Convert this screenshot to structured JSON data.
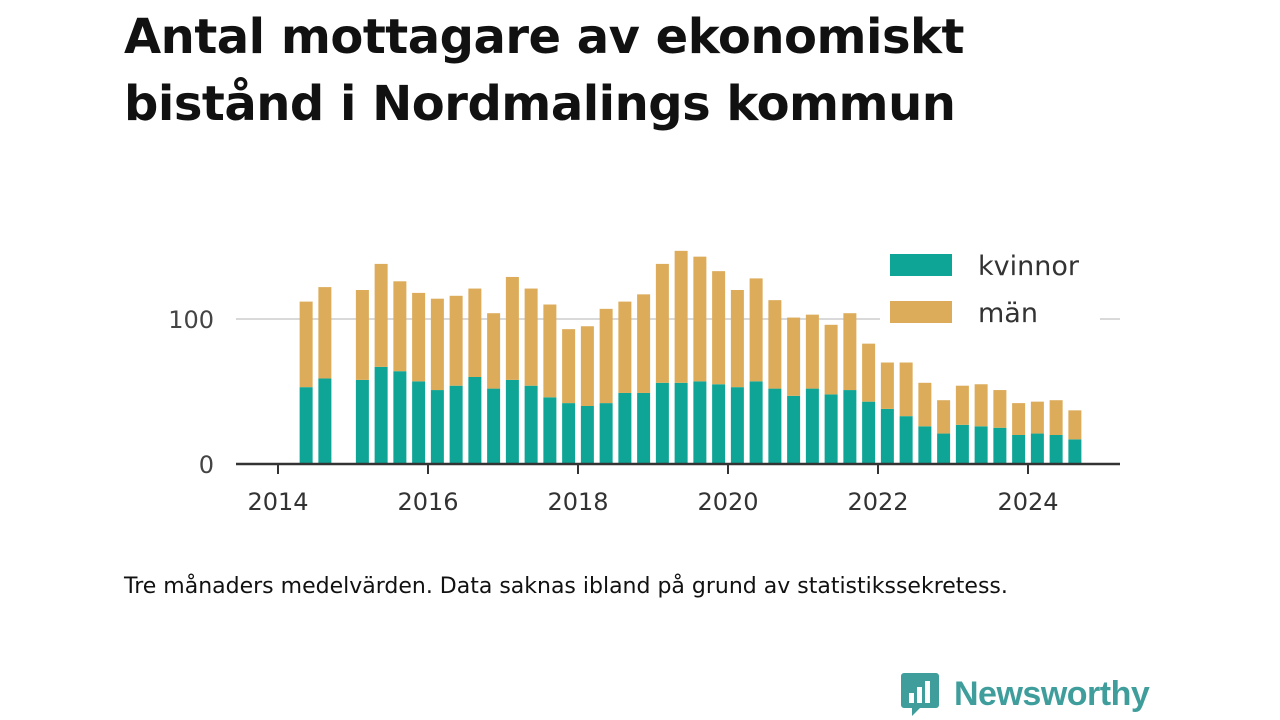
{
  "title": "Antal mottagare av ekonomiskt bistånd i Nordmalings kommun",
  "note": "Tre månaders medelvärden. Data saknas ibland på grund av statistikssekretess.",
  "brand": {
    "name": "Newsworthy",
    "color": "#3f9e9c"
  },
  "chart_data": {
    "type": "bar",
    "stacked": true,
    "x_ticks": [
      "2014",
      "2016",
      "2018",
      "2020",
      "2022",
      "2024"
    ],
    "y_ticks": [
      0,
      100
    ],
    "ylim": [
      0,
      150
    ],
    "grid": true,
    "legend_position": "top-right",
    "x": [
      "2014-Q2",
      "2014-Q3",
      "2014-Q4",
      "2015-Q1",
      "2015-Q2",
      "2015-Q3",
      "2015-Q4",
      "2016-Q1",
      "2016-Q2",
      "2016-Q3",
      "2016-Q4",
      "2017-Q1",
      "2017-Q2",
      "2017-Q3",
      "2017-Q4",
      "2018-Q1",
      "2018-Q2",
      "2018-Q3",
      "2018-Q4",
      "2019-Q1",
      "2019-Q2",
      "2019-Q3",
      "2019-Q4",
      "2020-Q1",
      "2020-Q2",
      "2020-Q3",
      "2020-Q4",
      "2021-Q1",
      "2021-Q2",
      "2021-Q3",
      "2021-Q4",
      "2022-Q1",
      "2022-Q2",
      "2022-Q3",
      "2022-Q4",
      "2023-Q1",
      "2023-Q2",
      "2023-Q3",
      "2023-Q4",
      "2024-Q1",
      "2024-Q2",
      "2024-Q3"
    ],
    "series": [
      {
        "name": "kvinnor",
        "color": "#0fa596",
        "values": [
          53,
          59,
          null,
          58,
          67,
          64,
          57,
          51,
          54,
          60,
          52,
          58,
          54,
          46,
          42,
          40,
          42,
          49,
          49,
          56,
          56,
          57,
          55,
          53,
          57,
          52,
          47,
          52,
          48,
          51,
          43,
          38,
          33,
          26,
          21,
          27,
          26,
          25,
          20,
          21,
          20,
          17
        ]
      },
      {
        "name": "män",
        "color": "#dcac5b",
        "values": [
          59,
          63,
          null,
          62,
          71,
          62,
          61,
          63,
          62,
          61,
          52,
          71,
          67,
          64,
          51,
          55,
          65,
          63,
          68,
          82,
          91,
          86,
          78,
          67,
          71,
          61,
          54,
          51,
          48,
          53,
          40,
          32,
          37,
          30,
          23,
          27,
          29,
          26,
          22,
          22,
          24,
          20
        ]
      }
    ]
  }
}
